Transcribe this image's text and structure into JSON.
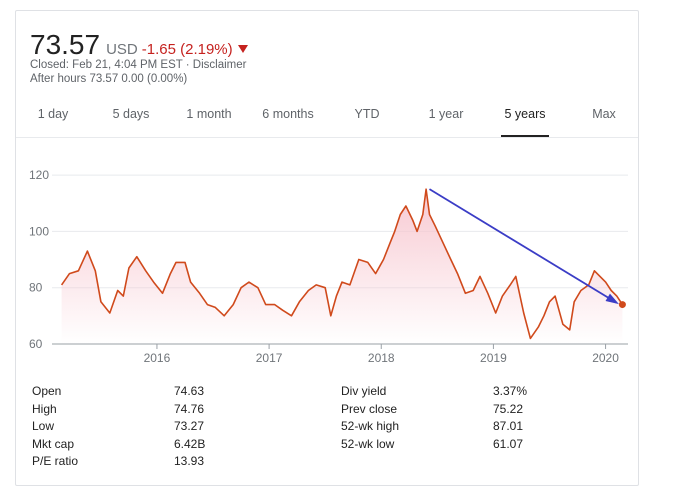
{
  "quote": {
    "price": "73.57",
    "currency": "USD",
    "change": "-1.65 (2.19%)",
    "closed_line": "Closed: Feb 21, 4:04 PM EST · Disclaimer",
    "after_hours_line": "After hours 73.57 0.00 (0.00%)",
    "down_color": "#c5221f"
  },
  "tabs": [
    {
      "label": "1 day"
    },
    {
      "label": "5 days"
    },
    {
      "label": "1 month"
    },
    {
      "label": "6 months"
    },
    {
      "label": "YTD"
    },
    {
      "label": "1 year"
    },
    {
      "label": "5 years",
      "active": true
    },
    {
      "label": "Max"
    }
  ],
  "chart_data": {
    "type": "area",
    "x_ticks": [
      "2016",
      "2017",
      "2018",
      "2019",
      "2020"
    ],
    "y_ticks": [
      "120",
      "100",
      "80",
      "60"
    ],
    "ylim": [
      60,
      125
    ],
    "xlim": [
      2015.1,
      2020.2
    ],
    "line_color": "#d04a1c",
    "fill_color": "#f7c6cf",
    "annotation_color": "#3b3dc6",
    "grid": true,
    "series": [
      {
        "x": [
          2015.15,
          2015.22,
          2015.3,
          2015.38,
          2015.45,
          2015.5,
          2015.58,
          2015.65,
          2015.7,
          2015.75,
          2015.82,
          2015.9,
          2015.97,
          2016.05,
          2016.12,
          2016.17,
          2016.25,
          2016.3,
          2016.38,
          2016.45,
          2016.52,
          2016.6,
          2016.68,
          2016.75,
          2016.82,
          2016.9,
          2016.97,
          2017.05,
          2017.12,
          2017.2,
          2017.27,
          2017.35,
          2017.42,
          2017.5,
          2017.55,
          2017.6,
          2017.65,
          2017.72,
          2017.8,
          2017.88,
          2017.95,
          2018.02,
          2018.08,
          2018.12,
          2018.17,
          2018.22,
          2018.28,
          2018.32,
          2018.37,
          2018.4,
          2018.43,
          2018.48,
          2018.55,
          2018.62,
          2018.68,
          2018.75,
          2018.82,
          2018.88,
          2018.95,
          2019.02,
          2019.08,
          2019.15,
          2019.2,
          2019.27,
          2019.33,
          2019.4,
          2019.45,
          2019.5,
          2019.55,
          2019.62,
          2019.68,
          2019.72,
          2019.78,
          2019.85,
          2019.9,
          2019.95,
          2020.0,
          2020.05,
          2020.1,
          2020.15
        ],
        "y": [
          81,
          85,
          86,
          93,
          86,
          75,
          71,
          79,
          77,
          87,
          91,
          86,
          82,
          78,
          85,
          89,
          89,
          82,
          78,
          74,
          73,
          70,
          74,
          80,
          82,
          80,
          74,
          74,
          72,
          70,
          75,
          79,
          81,
          80,
          70,
          77,
          82,
          81,
          90,
          89,
          85,
          90,
          96,
          100,
          106,
          109,
          104,
          100,
          106,
          115,
          106,
          102,
          96,
          90,
          85,
          78,
          79,
          84,
          78,
          71,
          77,
          81,
          84,
          71,
          62,
          66,
          70,
          75,
          77,
          67,
          65,
          75,
          79,
          81,
          86,
          84,
          82,
          79,
          77,
          74
        ]
      }
    ],
    "trend_line": {
      "from": [
        2018.43,
        115
      ],
      "to": [
        2020.15,
        74
      ]
    }
  },
  "stats": {
    "left": [
      {
        "label": "Open",
        "value": "74.63"
      },
      {
        "label": "High",
        "value": "74.76"
      },
      {
        "label": "Low",
        "value": "73.27"
      },
      {
        "label": "Mkt cap",
        "value": "6.42B"
      },
      {
        "label": "P/E ratio",
        "value": "13.93"
      }
    ],
    "right": [
      {
        "label": "Div yield",
        "value": "3.37%"
      },
      {
        "label": "Prev close",
        "value": "75.22"
      },
      {
        "label": "52-wk high",
        "value": "87.01"
      },
      {
        "label": "52-wk low",
        "value": "61.07"
      }
    ]
  }
}
